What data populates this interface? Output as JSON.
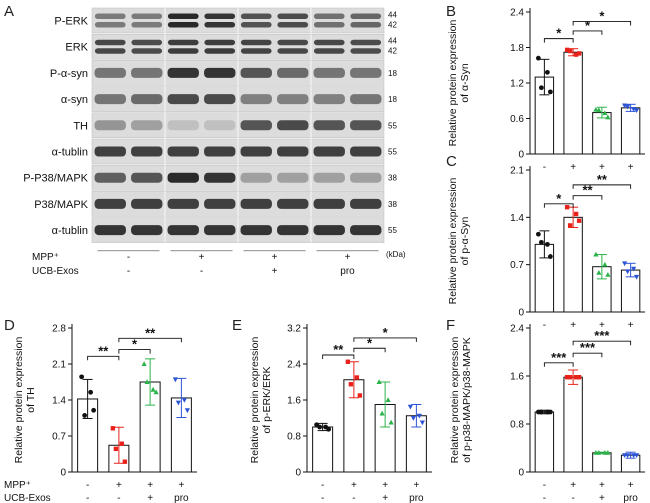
{
  "blot": {
    "letter": "A",
    "rows": [
      {
        "label": "P-ERK",
        "kda": [
          "44",
          "42"
        ],
        "double": true,
        "intensity": [
          0.55,
          0.55,
          0.95,
          0.9,
          0.75,
          0.78,
          0.6,
          0.65
        ]
      },
      {
        "label": "ERK",
        "kda": [
          "44",
          "42"
        ],
        "double": true,
        "intensity": [
          0.8,
          0.78,
          0.85,
          0.85,
          0.82,
          0.8,
          0.8,
          0.78
        ]
      },
      {
        "label": "P-α-syn",
        "kda": [
          "18"
        ],
        "double": false,
        "intensity": [
          0.55,
          0.55,
          0.85,
          0.85,
          0.7,
          0.6,
          0.55,
          0.55
        ]
      },
      {
        "label": "α-syn",
        "kda": [
          "18"
        ],
        "double": false,
        "intensity": [
          0.55,
          0.6,
          0.75,
          0.75,
          0.5,
          0.5,
          0.5,
          0.55
        ]
      },
      {
        "label": "TH",
        "kda": [
          "55"
        ],
        "double": false,
        "intensity": [
          0.4,
          0.35,
          0.2,
          0.2,
          0.7,
          0.75,
          0.7,
          0.7
        ]
      },
      {
        "label": "α-tublin",
        "kda": [
          "55"
        ],
        "double": false,
        "intensity": [
          0.8,
          0.8,
          0.8,
          0.8,
          0.8,
          0.8,
          0.8,
          0.8
        ]
      },
      {
        "label": "P-P38/MAPK",
        "kda": [
          "38"
        ],
        "double": false,
        "intensity": [
          0.65,
          0.7,
          0.9,
          0.85,
          0.35,
          0.35,
          0.35,
          0.35
        ]
      },
      {
        "label": "P38/MAPK",
        "kda": [
          "38"
        ],
        "double": false,
        "intensity": [
          0.8,
          0.8,
          0.8,
          0.8,
          0.8,
          0.8,
          0.8,
          0.8
        ]
      },
      {
        "label": "α-tublin",
        "kda": [
          "55"
        ],
        "double": false,
        "intensity": [
          0.85,
          0.85,
          0.85,
          0.85,
          0.85,
          0.85,
          0.85,
          0.85
        ]
      }
    ],
    "conditions": [
      {
        "label": "MPP⁺",
        "values": [
          "-",
          "+",
          "+",
          "+"
        ]
      },
      {
        "label": "UCB-Exos",
        "values": [
          "-",
          "-",
          "+",
          "pro"
        ]
      }
    ],
    "kda_unit": "(kDa)"
  },
  "colors": {
    "ctrl": "#111111",
    "mpp": "#e8221b",
    "exos": "#2bb34a",
    "pro": "#2c54d6",
    "axis": "#111111"
  },
  "chart_data": [
    {
      "type": "bar",
      "letter": "B",
      "ylabel": [
        "Relative protein expression",
        "of α-Syn"
      ],
      "ylim": [
        0,
        2.4
      ],
      "yticks": [
        0,
        0.6,
        1.2,
        1.8,
        2.4
      ],
      "ytick_labels": [
        "0",
        "0.6",
        "1.2",
        "1.8",
        "2.4"
      ],
      "categories": [
        "-",
        "+",
        "+",
        "+"
      ],
      "values": [
        1.3,
        1.72,
        0.7,
        0.78
      ],
      "errors": [
        0.3,
        0.06,
        0.09,
        0.06
      ],
      "points": [
        [
          1.62,
          1.05,
          1.12,
          1.38
        ],
        [
          1.76,
          1.7,
          1.74,
          1.68
        ],
        [
          0.75,
          0.62,
          0.74,
          0.69
        ],
        [
          0.82,
          0.74,
          0.8,
          0.76
        ]
      ],
      "sig": [
        {
          "a": 0,
          "b": 1,
          "label": "*",
          "level": 1.95
        },
        {
          "a": 1,
          "b": 2,
          "label": "*",
          "level": 2.08
        },
        {
          "a": 1,
          "b": 3,
          "label": "*",
          "level": 2.24
        }
      ]
    },
    {
      "type": "bar",
      "letter": "C",
      "ylabel": [
        "Relative protein expression",
        "of p-α-Syn"
      ],
      "ylim": [
        0,
        2.1
      ],
      "yticks": [
        0,
        0.7,
        1.4,
        2.1
      ],
      "ytick_labels": [
        "0",
        "0.7",
        "1.4",
        "2.1"
      ],
      "categories": [
        "-",
        "+",
        "+",
        "+"
      ],
      "values": [
        1.0,
        1.4,
        0.67,
        0.62
      ],
      "errors": [
        0.2,
        0.15,
        0.18,
        0.1
      ],
      "points": [
        [
          1.15,
          0.82,
          1.03,
          1.0
        ],
        [
          1.55,
          1.35,
          1.28,
          1.45
        ],
        [
          0.85,
          0.55,
          0.58,
          0.7
        ],
        [
          0.72,
          0.52,
          0.6,
          0.64
        ]
      ],
      "sig": [
        {
          "a": 0,
          "b": 1,
          "label": "*",
          "level": 1.6
        },
        {
          "a": 1,
          "b": 2,
          "label": "**",
          "level": 1.72
        },
        {
          "a": 1,
          "b": 3,
          "label": "**",
          "level": 1.88
        }
      ]
    },
    {
      "type": "bar",
      "letter": "D",
      "ylabel": [
        "Relative protein expression",
        "of TH"
      ],
      "ylim": [
        0,
        2.8
      ],
      "yticks": [
        0,
        0.7,
        1.4,
        2.1,
        2.8
      ],
      "ytick_labels": [
        "0",
        "0.7",
        "1.4",
        "2.1",
        "2.8"
      ],
      "categories": [
        "-",
        "+",
        "+",
        "+"
      ],
      "values": [
        1.42,
        0.52,
        1.75,
        1.44
      ],
      "errors": [
        0.38,
        0.35,
        0.45,
        0.38
      ],
      "points": [
        [
          1.85,
          1.2,
          1.1,
          1.55
        ],
        [
          0.85,
          0.2,
          0.45,
          0.55
        ],
        [
          2.1,
          1.55,
          1.75,
          1.6
        ],
        [
          1.8,
          1.2,
          1.35,
          1.4
        ]
      ],
      "sig": [
        {
          "a": 0,
          "b": 1,
          "label": "**",
          "level": 2.25
        },
        {
          "a": 1,
          "b": 2,
          "label": "*",
          "level": 2.38
        },
        {
          "a": 1,
          "b": 3,
          "label": "**",
          "level": 2.6
        }
      ]
    },
    {
      "type": "bar",
      "letter": "E",
      "ylabel": [
        "Relative  protein expression",
        "of p-ERK/ERK"
      ],
      "ylim": [
        0,
        3.2
      ],
      "yticks": [
        0,
        0.8,
        1.6,
        2.4,
        3.2
      ],
      "ytick_labels": [
        "0",
        "0.8",
        "1.6",
        "2.4",
        "3.2"
      ],
      "categories": [
        "-",
        "+",
        "+",
        "+"
      ],
      "values": [
        1.0,
        2.05,
        1.5,
        1.25
      ],
      "errors": [
        0.08,
        0.4,
        0.5,
        0.25
      ],
      "points": [
        [
          1.05,
          0.95,
          1.0,
          1.0
        ],
        [
          2.45,
          1.7,
          1.95,
          2.1
        ],
        [
          2.0,
          1.1,
          1.3,
          1.6
        ],
        [
          1.45,
          1.1,
          1.2,
          1.25
        ]
      ],
      "sig": [
        {
          "a": 0,
          "b": 1,
          "label": "**",
          "level": 2.6
        },
        {
          "a": 1,
          "b": 2,
          "label": "*",
          "level": 2.75
        },
        {
          "a": 1,
          "b": 3,
          "label": "*",
          "level": 2.98
        }
      ]
    },
    {
      "type": "bar",
      "letter": "F",
      "ylabel": [
        "Relative protein expression",
        "of p-p38-MAPK/p38-MAPK"
      ],
      "ylim": [
        0,
        2.4
      ],
      "yticks": [
        0,
        0.8,
        1.6,
        2.4
      ],
      "ytick_labels": [
        "0",
        "0.8",
        "1.6",
        "2.4"
      ],
      "categories": [
        "-",
        "+",
        "+",
        "+"
      ],
      "values": [
        1.0,
        1.58,
        0.32,
        0.28
      ],
      "errors": [
        0.03,
        0.12,
        0.01,
        0.05
      ],
      "points": [
        [
          1.0,
          1.0,
          1.0,
          1.0
        ],
        [
          1.58,
          1.58,
          1.58,
          1.58
        ],
        [
          0.32,
          0.32,
          0.32,
          0.32
        ],
        [
          0.28,
          0.28,
          0.28,
          0.28
        ]
      ],
      "sig": [
        {
          "a": 0,
          "b": 1,
          "label": "***",
          "level": 1.82
        },
        {
          "a": 1,
          "b": 2,
          "label": "***",
          "level": 1.98
        },
        {
          "a": 1,
          "b": 3,
          "label": "***",
          "level": 2.18
        }
      ]
    }
  ],
  "group_row": {
    "mpp_label": "MPP⁺",
    "exos_label": "UCB-Exos",
    "mpp": [
      "-",
      "+",
      "+",
      "+"
    ],
    "exos": [
      "-",
      "-",
      "+",
      "pro"
    ]
  }
}
